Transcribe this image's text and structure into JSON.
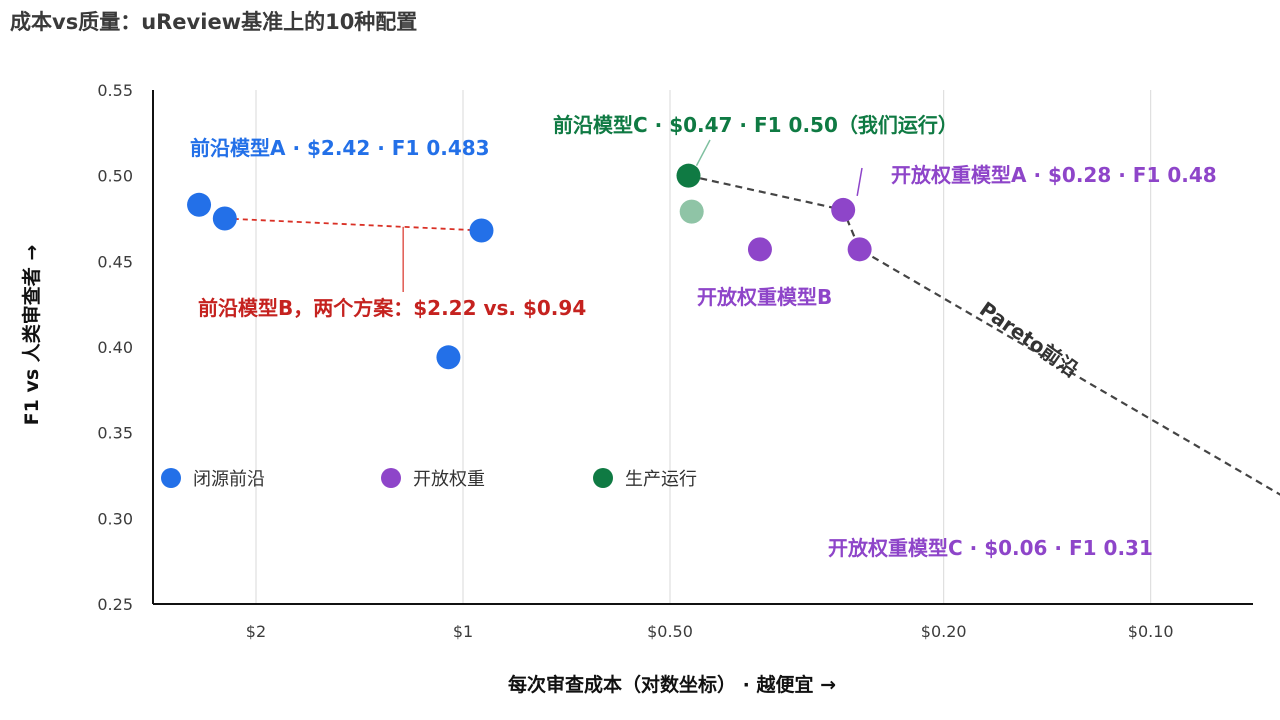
{
  "page_title": "成本vs质量：uReview基准上的10种配置",
  "colors": {
    "closed_frontier": "#2370e8",
    "open_weight": "#8e45c9",
    "production": "#0f7a43",
    "production_faded": "#8fc4a6",
    "pair_line": "#d93025",
    "pareto_line": "#444444",
    "axis": "#111111",
    "red_text": "#c5221f"
  },
  "chart_data": {
    "type": "scatter",
    "title": "成本vs质量：uReview基准上的10种配置",
    "xlabel": "每次审查成本（对数坐标） · 越便宜 →",
    "ylabel": "F1 vs 人类审查者 →",
    "x_scale": "log",
    "x_reversed": true,
    "xlim": [
      3.5,
      0.055
    ],
    "ylim": [
      0.25,
      0.55
    ],
    "x_ticks": [
      2,
      1,
      0.5,
      0.2,
      0.1
    ],
    "x_tick_labels": [
      "$2",
      "$1",
      "$0.50",
      "$0.20",
      "$0.10"
    ],
    "y_ticks": [
      0.25,
      0.3,
      0.35,
      0.4,
      0.45,
      0.5,
      0.55
    ],
    "y_tick_labels": [
      "0.25",
      "0.30",
      "0.35",
      "0.40",
      "0.45",
      "0.50",
      "0.55"
    ],
    "grid": "x-only",
    "legend_position": "lower-left",
    "series": [
      {
        "name": "闭源前沿",
        "color_key": "closed_frontier",
        "points": [
          {
            "x": 2.42,
            "y": 0.483
          },
          {
            "x": 2.22,
            "y": 0.475
          },
          {
            "x": 0.94,
            "y": 0.468
          },
          {
            "x": 1.05,
            "y": 0.394
          }
        ]
      },
      {
        "name": "开放权重",
        "color_key": "open_weight",
        "points": [
          {
            "x": 0.28,
            "y": 0.48
          },
          {
            "x": 0.37,
            "y": 0.457
          },
          {
            "x": 0.265,
            "y": 0.457
          },
          {
            "x": 0.06,
            "y": 0.306
          }
        ]
      },
      {
        "name": "生产运行",
        "color_key": "production",
        "points": [
          {
            "x": 0.47,
            "y": 0.5
          },
          {
            "x": 0.465,
            "y": 0.479,
            "faded": true
          }
        ]
      }
    ],
    "pareto_frontier": [
      {
        "x": 0.47,
        "y": 0.5
      },
      {
        "x": 0.28,
        "y": 0.48
      },
      {
        "x": 0.265,
        "y": 0.457
      },
      {
        "x": 0.06,
        "y": 0.306
      }
    ],
    "pair_connector": [
      {
        "x": 2.22,
        "y": 0.475
      },
      {
        "x": 0.94,
        "y": 0.468
      }
    ],
    "annotations": [
      {
        "text": "前沿模型A · $2.42 · F1 0.483",
        "color_key": "closed_frontier"
      },
      {
        "text": "前沿模型B，两个方案：$2.22 vs. $0.94",
        "color_key": "red_text"
      },
      {
        "text": "前沿模型C · $0.47 · F1 0.50（我们运行）",
        "color_key": "production"
      },
      {
        "text": "开放权重模型A · $0.28 · F1 0.48",
        "color_key": "open_weight"
      },
      {
        "text": "开放权重模型B",
        "color_key": "open_weight"
      },
      {
        "text": "开放权重模型C · $0.06 · F1 0.31",
        "color_key": "open_weight"
      },
      {
        "text": "Pareto前沿",
        "color_key": "pareto_line"
      }
    ]
  }
}
